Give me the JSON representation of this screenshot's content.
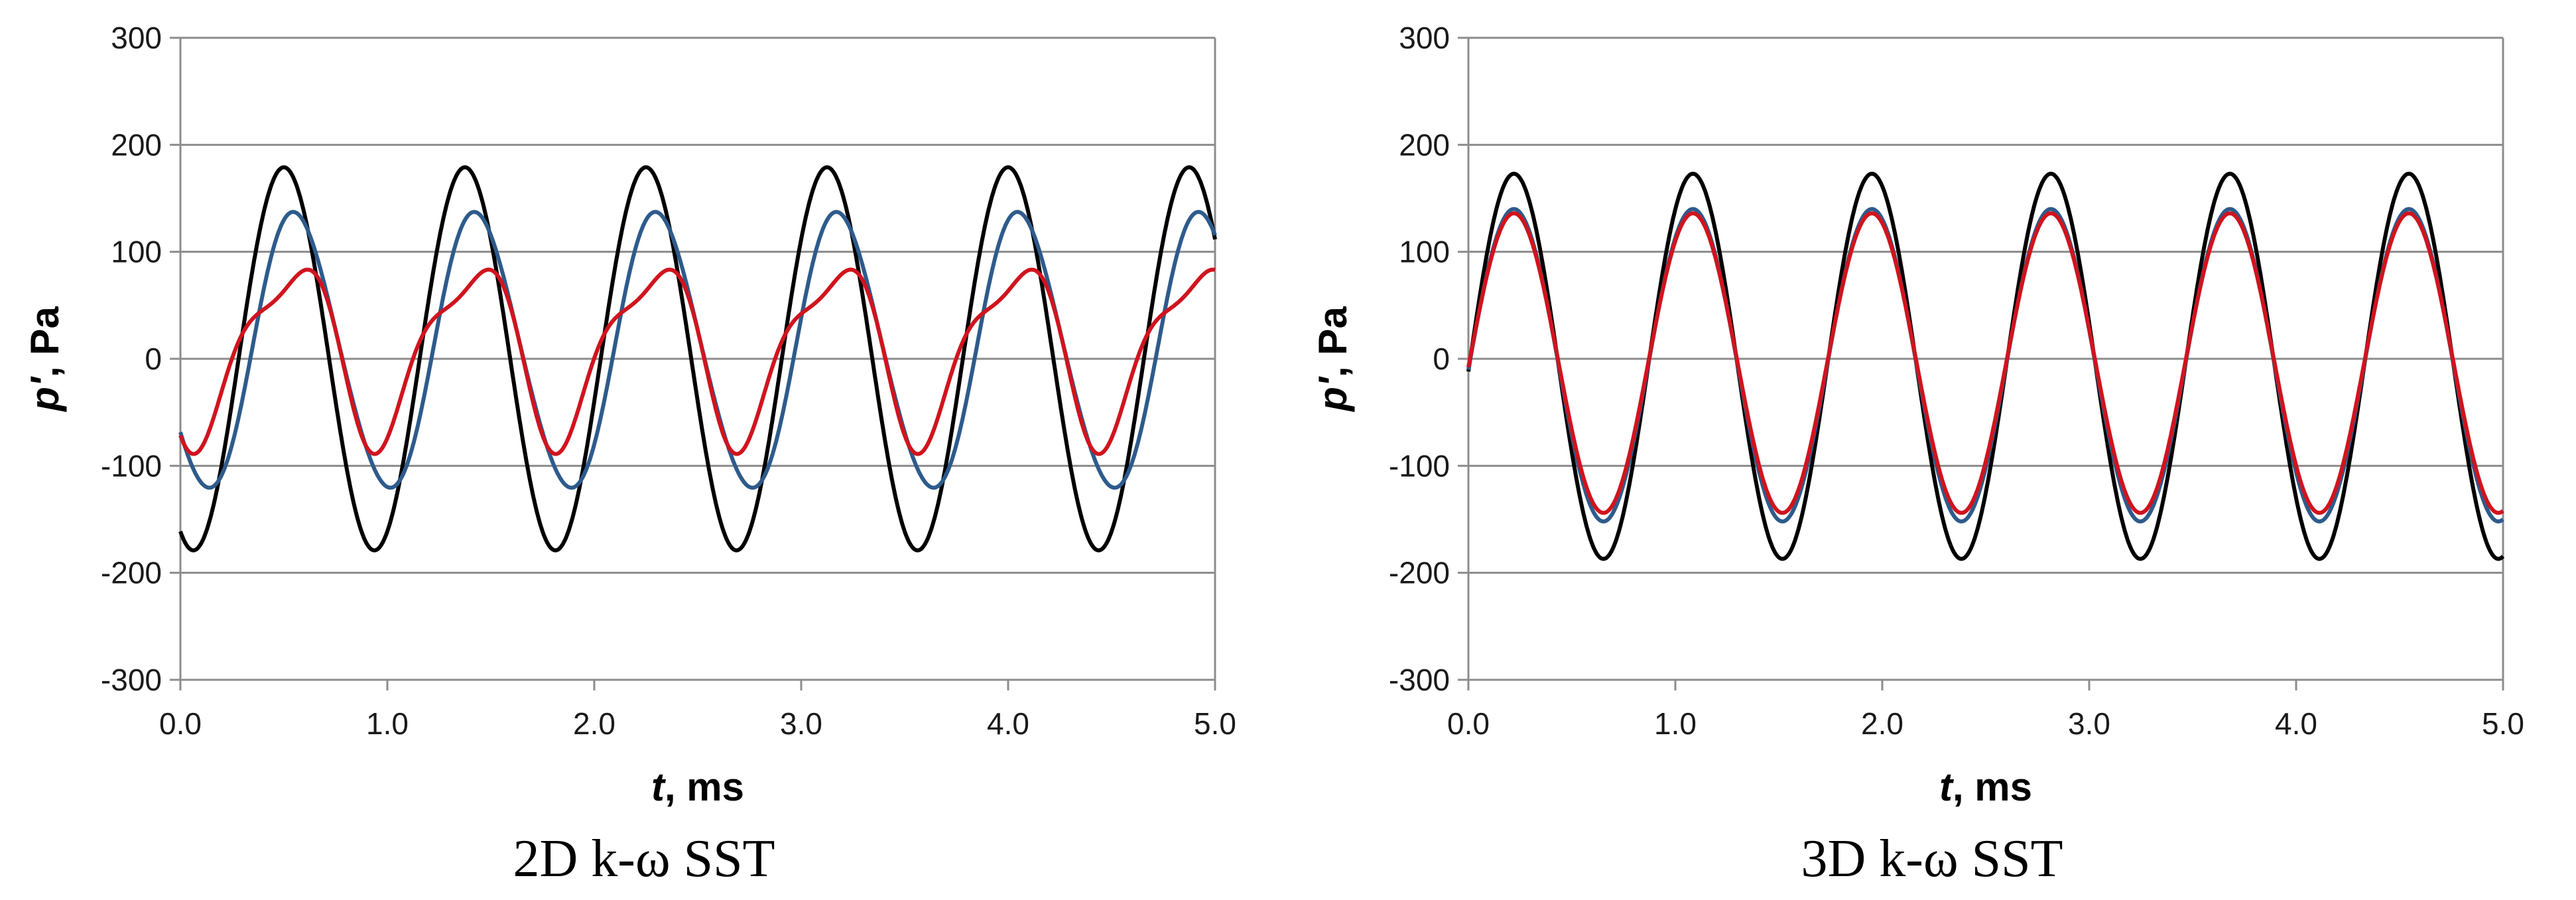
{
  "chart_data": [
    {
      "type": "line",
      "caption": "2D k-ω SST",
      "xlabel_var": "t",
      "xlabel_unit": ", ms",
      "ylabel_var": "p'",
      "ylabel_unit": ", Pa",
      "xlim": [
        0,
        5
      ],
      "ylim": [
        -300,
        300
      ],
      "xticks": [
        0,
        1,
        2,
        3,
        4,
        5
      ],
      "xtick_labels": [
        "0.0",
        "1.0",
        "2.0",
        "3.0",
        "4.0",
        "5.0"
      ],
      "yticks": [
        -300,
        -200,
        -100,
        0,
        100,
        200,
        300
      ],
      "ytick_labels": [
        "-300",
        "-200",
        "-100",
        "0",
        "100",
        "200",
        "300"
      ],
      "grid": "horizontal",
      "series": [
        {
          "color": "#000000",
          "period": 0.875,
          "amplitude": 179,
          "offset": 0,
          "phase": 0.5,
          "harmonic2": 0,
          "harmonic2_phase": 0
        },
        {
          "color": "#2e5b8c",
          "period": 0.875,
          "amplitude": 128,
          "offset": 6,
          "phase": 0.56,
          "harmonic2": 8,
          "harmonic2_phase": 0.2
        },
        {
          "color": "#d0141e",
          "period": 0.875,
          "amplitude": 78,
          "offset": 10,
          "phase": 0.53,
          "harmonic2": 24,
          "harmonic2_phase": 0.62
        }
      ]
    },
    {
      "type": "line",
      "caption": "3D k-ω SST",
      "xlabel_var": "t",
      "xlabel_unit": ", ms",
      "ylabel_var": "p'",
      "ylabel_unit": ", Pa",
      "xlim": [
        0,
        5
      ],
      "ylim": [
        -300,
        300
      ],
      "xticks": [
        0,
        1,
        2,
        3,
        4,
        5
      ],
      "xtick_labels": [
        "0.0",
        "1.0",
        "2.0",
        "3.0",
        "4.0",
        "5.0"
      ],
      "yticks": [
        -300,
        -200,
        -100,
        0,
        100,
        200,
        300
      ],
      "ytick_labels": [
        "-300",
        "-200",
        "-100",
        "0",
        "100",
        "200",
        "300"
      ],
      "grid": "horizontal",
      "series": [
        {
          "color": "#000000",
          "period": 0.865,
          "amplitude": 180,
          "offset": -7,
          "phase": 0.22,
          "harmonic2": 0,
          "harmonic2_phase": 0
        },
        {
          "color": "#2e5b8c",
          "period": 0.865,
          "amplitude": 146,
          "offset": -6,
          "phase": 0.22,
          "harmonic2": 0,
          "harmonic2_phase": 0
        },
        {
          "color": "#d0141e",
          "period": 0.865,
          "amplitude": 140,
          "offset": -4,
          "phase": 0.22,
          "harmonic2": 0,
          "harmonic2_phase": 0
        }
      ]
    }
  ]
}
